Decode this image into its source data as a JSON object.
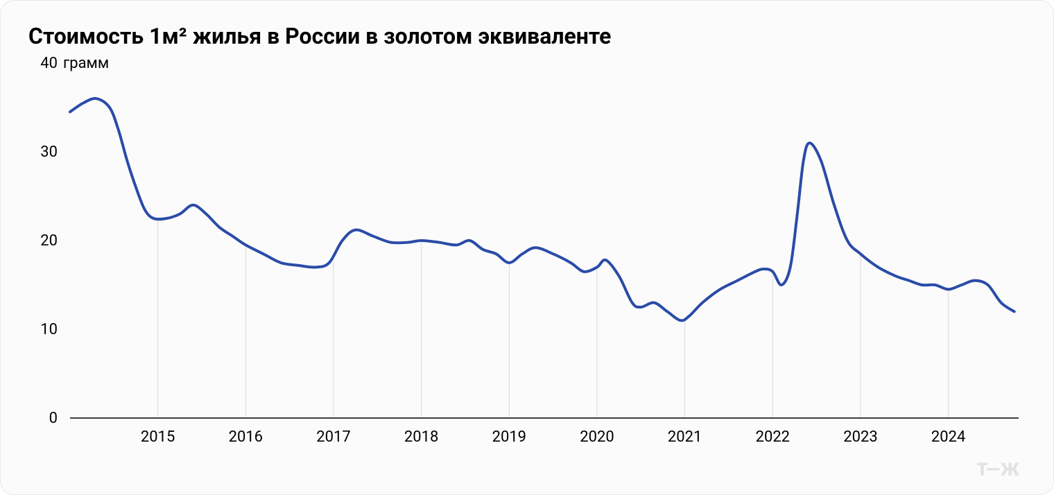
{
  "chart": {
    "type": "line",
    "title": "Стоимость 1м² жилья в России в золотом эквиваленте",
    "y_unit": "грамм",
    "line_color": "#2a4ba8",
    "line_width": 4,
    "background_color": "#fbfbfb",
    "card_border_color": "#e8e8e8",
    "grid_color": "#d9d9d9",
    "axis_color": "#000000",
    "title_fontsize": 32,
    "tick_fontsize": 22,
    "ylim": [
      0,
      40
    ],
    "yticks": [
      0,
      10,
      20,
      30,
      40
    ],
    "xlim": [
      2014.0,
      2024.8
    ],
    "xticks": [
      2015,
      2016,
      2017,
      2018,
      2019,
      2020,
      2021,
      2022,
      2023,
      2024
    ],
    "series": [
      {
        "x": 2014.0,
        "y": 34.5
      },
      {
        "x": 2014.15,
        "y": 35.5
      },
      {
        "x": 2014.3,
        "y": 36.0
      },
      {
        "x": 2014.45,
        "y": 35.0
      },
      {
        "x": 2014.55,
        "y": 32.5
      },
      {
        "x": 2014.65,
        "y": 29.0
      },
      {
        "x": 2014.75,
        "y": 26.0
      },
      {
        "x": 2014.85,
        "y": 23.5
      },
      {
        "x": 2014.95,
        "y": 22.5
      },
      {
        "x": 2015.1,
        "y": 22.5
      },
      {
        "x": 2015.25,
        "y": 23.0
      },
      {
        "x": 2015.4,
        "y": 24.0
      },
      {
        "x": 2015.55,
        "y": 23.0
      },
      {
        "x": 2015.7,
        "y": 21.5
      },
      {
        "x": 2015.85,
        "y": 20.5
      },
      {
        "x": 2016.0,
        "y": 19.5
      },
      {
        "x": 2016.2,
        "y": 18.5
      },
      {
        "x": 2016.4,
        "y": 17.5
      },
      {
        "x": 2016.6,
        "y": 17.2
      },
      {
        "x": 2016.8,
        "y": 17.0
      },
      {
        "x": 2016.95,
        "y": 17.5
      },
      {
        "x": 2017.1,
        "y": 20.0
      },
      {
        "x": 2017.25,
        "y": 21.2
      },
      {
        "x": 2017.45,
        "y": 20.5
      },
      {
        "x": 2017.65,
        "y": 19.8
      },
      {
        "x": 2017.85,
        "y": 19.8
      },
      {
        "x": 2018.0,
        "y": 20.0
      },
      {
        "x": 2018.2,
        "y": 19.8
      },
      {
        "x": 2018.4,
        "y": 19.5
      },
      {
        "x": 2018.55,
        "y": 20.0
      },
      {
        "x": 2018.7,
        "y": 19.0
      },
      {
        "x": 2018.85,
        "y": 18.5
      },
      {
        "x": 2019.0,
        "y": 17.5
      },
      {
        "x": 2019.15,
        "y": 18.5
      },
      {
        "x": 2019.3,
        "y": 19.2
      },
      {
        "x": 2019.5,
        "y": 18.5
      },
      {
        "x": 2019.7,
        "y": 17.5
      },
      {
        "x": 2019.85,
        "y": 16.5
      },
      {
        "x": 2020.0,
        "y": 17.0
      },
      {
        "x": 2020.1,
        "y": 17.8
      },
      {
        "x": 2020.25,
        "y": 16.0
      },
      {
        "x": 2020.4,
        "y": 13.0
      },
      {
        "x": 2020.5,
        "y": 12.5
      },
      {
        "x": 2020.65,
        "y": 13.0
      },
      {
        "x": 2020.8,
        "y": 12.0
      },
      {
        "x": 2020.95,
        "y": 11.0
      },
      {
        "x": 2021.05,
        "y": 11.5
      },
      {
        "x": 2021.2,
        "y": 13.0
      },
      {
        "x": 2021.4,
        "y": 14.5
      },
      {
        "x": 2021.6,
        "y": 15.5
      },
      {
        "x": 2021.8,
        "y": 16.5
      },
      {
        "x": 2021.9,
        "y": 16.8
      },
      {
        "x": 2022.0,
        "y": 16.5
      },
      {
        "x": 2022.1,
        "y": 15.0
      },
      {
        "x": 2022.2,
        "y": 17.0
      },
      {
        "x": 2022.28,
        "y": 23.0
      },
      {
        "x": 2022.35,
        "y": 29.0
      },
      {
        "x": 2022.42,
        "y": 31.0
      },
      {
        "x": 2022.55,
        "y": 29.0
      },
      {
        "x": 2022.7,
        "y": 24.0
      },
      {
        "x": 2022.85,
        "y": 20.0
      },
      {
        "x": 2023.0,
        "y": 18.5
      },
      {
        "x": 2023.2,
        "y": 17.0
      },
      {
        "x": 2023.4,
        "y": 16.0
      },
      {
        "x": 2023.55,
        "y": 15.5
      },
      {
        "x": 2023.7,
        "y": 15.0
      },
      {
        "x": 2023.85,
        "y": 15.0
      },
      {
        "x": 2024.0,
        "y": 14.5
      },
      {
        "x": 2024.15,
        "y": 15.0
      },
      {
        "x": 2024.3,
        "y": 15.5
      },
      {
        "x": 2024.45,
        "y": 15.0
      },
      {
        "x": 2024.6,
        "y": 13.0
      },
      {
        "x": 2024.75,
        "y": 12.0
      }
    ],
    "watermark": "Т—Ж"
  }
}
